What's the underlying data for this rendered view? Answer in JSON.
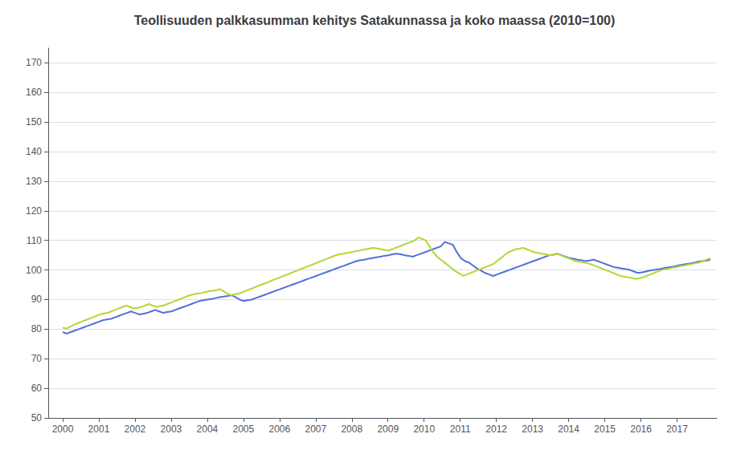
{
  "chart_data": {
    "type": "line",
    "title": "Teollisuuden palkkasumman kehitys Satakunnassa ja koko maassa (2010=100)",
    "xlim": [
      1999.6,
      2018.1
    ],
    "xticks": [
      2000,
      2001,
      2002,
      2003,
      2004,
      2005,
      2006,
      2007,
      2008,
      2009,
      2010,
      2011,
      2012,
      2013,
      2014,
      2015,
      2016,
      2017
    ],
    "ylim": [
      50,
      175
    ],
    "yticks": [
      50,
      60,
      70,
      80,
      90,
      100,
      110,
      120,
      130,
      140,
      150,
      160,
      170
    ],
    "grid": true,
    "series": [
      {
        "x": [
          2000,
          2000.1113,
          2000.2226,
          2000.3339,
          2000.4452,
          2000.5565,
          2000.6678,
          2000.7791,
          2000.8904,
          2001.0017,
          2001.113,
          2001.2243,
          2001.3357,
          2001.447,
          2001.5583,
          2001.6696,
          2001.7809,
          2001.8922,
          2002.0035,
          2002.1148,
          2002.2261,
          2002.3374,
          2002.4487,
          2002.56,
          2002.6713,
          2002.7826,
          2002.8939,
          2003.0052,
          2003.1165,
          2003.2278,
          2003.3391,
          2003.4504,
          2003.5617,
          2003.673,
          2003.7843,
          2003.8957,
          2004.007,
          2004.1183,
          2004.2296,
          2004.3409,
          2004.4522,
          2004.5635,
          2004.6748,
          2004.7861,
          2004.8974,
          2005.0087,
          2005.12,
          2005.2313,
          2005.3426,
          2005.4539,
          2005.5652,
          2005.6765,
          2005.7878,
          2005.8991,
          2006.0104,
          2006.1217,
          2006.233,
          2006.3443,
          2006.4557,
          2006.567,
          2006.6783,
          2006.7896,
          2006.9009,
          2007.0122,
          2007.1235,
          2007.2348,
          2007.3461,
          2007.4574,
          2007.5687,
          2007.68,
          2007.7913,
          2007.9026,
          2008.0139,
          2008.1252,
          2008.2365,
          2008.3478,
          2008.4591,
          2008.5704,
          2008.6817,
          2008.793,
          2008.9043,
          2009.0157,
          2009.127,
          2009.2383,
          2009.3496,
          2009.4609,
          2009.5722,
          2009.6835,
          2009.7948,
          2009.9061,
          2010.0174,
          2010.1287,
          2010.24,
          2010.3513,
          2010.4626,
          2010.5739,
          2010.6852,
          2010.7965,
          2010.9078,
          2011.0191,
          2011.1304,
          2011.2417,
          2011.353,
          2011.4643,
          2011.5757,
          2011.687,
          2011.7983,
          2011.9096,
          2012.0209,
          2012.1322,
          2012.2435,
          2012.3548,
          2012.4661,
          2012.5774,
          2012.6887,
          2012.8,
          2012.9113,
          2013.0226,
          2013.1339,
          2013.2452,
          2013.3565,
          2013.4678,
          2013.5791,
          2013.6904,
          2013.8017,
          2013.913,
          2014.0243,
          2014.1357,
          2014.247,
          2014.3583,
          2014.4696,
          2014.5809,
          2014.6922,
          2014.8035,
          2014.9148,
          2015.0261,
          2015.1374,
          2015.2487,
          2015.36,
          2015.4713,
          2015.5826,
          2015.6939,
          2015.8052,
          2015.9165,
          2016.0278,
          2016.1391,
          2016.2504,
          2016.3617,
          2016.473,
          2016.5843,
          2016.6957,
          2016.807,
          2016.9183,
          2017.0296,
          2017.1409,
          2017.2522,
          2017.3635,
          2017.4748,
          2017.5861,
          2017.6974,
          2017.8087,
          2017.92
        ],
        "values": [
          79.0,
          78.5,
          79.0,
          79.5,
          80.0,
          80.5,
          81.0,
          81.5,
          82.0,
          82.5,
          83.0,
          83.3,
          83.5,
          84.0,
          84.5,
          85.0,
          85.5,
          86.0,
          85.5,
          85.0,
          85.2,
          85.5,
          86.0,
          86.5,
          86.0,
          85.5,
          85.8,
          86.0,
          86.5,
          87.0,
          87.5,
          88.0,
          88.5,
          89.0,
          89.5,
          89.8,
          90.0,
          90.2,
          90.5,
          90.8,
          91.0,
          91.2,
          91.5,
          90.8,
          90.0,
          89.5,
          89.8,
          90.0,
          90.5,
          91.0,
          91.5,
          92.0,
          92.5,
          93.0,
          93.5,
          94.0,
          94.5,
          95.0,
          95.5,
          96.0,
          96.5,
          97.0,
          97.5,
          98.0,
          98.5,
          99.0,
          99.5,
          100.0,
          100.5,
          101.0,
          101.5,
          102.0,
          102.5,
          103.0,
          103.3,
          103.5,
          103.8,
          104.0,
          104.3,
          104.5,
          104.8,
          105.0,
          105.3,
          105.5,
          105.3,
          105.0,
          104.8,
          104.5,
          105.0,
          105.5,
          106.0,
          106.5,
          107.0,
          107.5,
          108.0,
          109.5,
          109.0,
          108.5,
          106.0,
          104.0,
          103.0,
          102.5,
          101.5,
          100.5,
          99.8,
          99.0,
          98.5,
          98.0,
          98.5,
          99.0,
          99.5,
          100.0,
          100.5,
          101.0,
          101.5,
          102.0,
          102.5,
          103.0,
          103.5,
          104.0,
          104.5,
          105.0,
          105.2,
          105.5,
          105.0,
          104.5,
          104.0,
          103.8,
          103.5,
          103.3,
          103.0,
          103.2,
          103.5,
          103.0,
          102.5,
          102.0,
          101.5,
          101.0,
          100.8,
          100.5,
          100.3,
          100.0,
          99.5,
          99.0,
          99.2,
          99.5,
          99.8,
          100.0,
          100.2,
          100.5,
          100.8,
          101.0,
          101.2,
          101.5,
          101.8,
          102.0,
          102.2,
          102.5,
          102.8,
          103.0,
          103.2,
          103.5
        ]
      },
      {
        "x": [
          2000,
          2000.1036,
          2000.2072,
          2000.3108,
          2000.4143,
          2000.5179,
          2000.6215,
          2000.7251,
          2000.8287,
          2000.9323,
          2001.0358,
          2001.1394,
          2001.243,
          2001.3466,
          2001.4502,
          2001.5538,
          2001.6573,
          2001.7609,
          2001.8645,
          2001.9681,
          2002.0717,
          2002.1753,
          2002.2788,
          2002.3824,
          2002.486,
          2002.5896,
          2002.6932,
          2002.7968,
          2002.9003,
          2003.0039,
          2003.1075,
          2003.2111,
          2003.3147,
          2003.4183,
          2003.5218,
          2003.6254,
          2003.729,
          2003.8326,
          2003.9362,
          2004.0398,
          2004.1434,
          2004.2469,
          2004.3505,
          2004.4541,
          2004.5577,
          2004.6613,
          2004.7649,
          2004.8684,
          2004.972,
          2005.0756,
          2005.1792,
          2005.2828,
          2005.3864,
          2005.4899,
          2005.5935,
          2005.6971,
          2005.8007,
          2005.9043,
          2006.0079,
          2006.1114,
          2006.215,
          2006.3186,
          2006.4222,
          2006.5258,
          2006.6294,
          2006.7329,
          2006.8365,
          2006.9401,
          2007.0437,
          2007.1473,
          2007.2509,
          2007.3545,
          2007.458,
          2007.5616,
          2007.6652,
          2007.7688,
          2007.8724,
          2007.976,
          2008.0795,
          2008.1831,
          2008.2867,
          2008.3903,
          2008.4939,
          2008.5975,
          2008.701,
          2008.8046,
          2008.9082,
          2009.0118,
          2009.1154,
          2009.219,
          2009.3225,
          2009.4261,
          2009.5297,
          2009.6333,
          2009.7369,
          2009.8405,
          2009.944,
          2010.0476,
          2010.1512,
          2010.2548,
          2010.3584,
          2010.462,
          2010.5655,
          2010.6691,
          2010.7727,
          2010.8763,
          2010.9799,
          2011.0835,
          2011.1871,
          2011.2906,
          2011.3942,
          2011.4978,
          2011.6014,
          2011.705,
          2011.8086,
          2011.9121,
          2012.0157,
          2012.1193,
          2012.2229,
          2012.3265,
          2012.4301,
          2012.5336,
          2012.6372,
          2012.7408,
          2012.8444,
          2012.948,
          2013.0516,
          2013.1551,
          2013.2587,
          2013.3623,
          2013.4659,
          2013.5695,
          2013.6731,
          2013.7766,
          2013.8802,
          2013.9838,
          2014.0874,
          2014.191,
          2014.2946,
          2014.3982,
          2014.5017,
          2014.6053,
          2014.7089,
          2014.8125,
          2014.9161,
          2015.0197,
          2015.1232,
          2015.2268,
          2015.3304,
          2015.434,
          2015.5376,
          2015.6412,
          2015.7447,
          2015.8483,
          2015.9519,
          2016.0555,
          2016.1591,
          2016.2627,
          2016.3662,
          2016.4698,
          2016.5734,
          2016.677,
          2016.7806,
          2016.8842,
          2016.9877,
          2017.0913,
          2017.1949,
          2017.2985,
          2017.4021,
          2017.5057,
          2017.6092,
          2017.7128,
          2017.8164,
          2017.92
        ],
        "values": [
          80.5,
          80.2,
          80.8,
          81.5,
          82.0,
          82.5,
          83.0,
          83.5,
          84.0,
          84.5,
          85.0,
          85.3,
          85.5,
          86.0,
          86.5,
          87.0,
          87.5,
          88.0,
          87.5,
          87.0,
          87.2,
          87.5,
          88.0,
          88.5,
          88.0,
          87.5,
          87.8,
          88.0,
          88.5,
          89.0,
          89.5,
          90.0,
          90.5,
          91.0,
          91.5,
          91.8,
          92.0,
          92.2,
          92.5,
          92.8,
          93.0,
          93.2,
          93.5,
          92.8,
          92.0,
          91.5,
          91.8,
          92.0,
          92.5,
          93.0,
          93.5,
          94.0,
          94.5,
          95.0,
          95.5,
          96.0,
          96.5,
          97.0,
          97.5,
          98.0,
          98.5,
          99.0,
          99.5,
          100.0,
          100.5,
          101.0,
          101.5,
          102.0,
          102.5,
          103.0,
          103.5,
          104.0,
          104.5,
          105.0,
          105.3,
          105.5,
          105.8,
          106.0,
          106.3,
          106.5,
          106.8,
          107.0,
          107.3,
          107.5,
          107.3,
          107.0,
          106.8,
          106.5,
          107.0,
          107.5,
          108.0,
          108.5,
          109.0,
          109.5,
          110.0,
          111.0,
          110.5,
          110.0,
          108.0,
          106.0,
          104.5,
          103.5,
          102.5,
          101.5,
          100.5,
          99.5,
          98.8,
          98.0,
          98.5,
          99.0,
          99.5,
          100.0,
          100.5,
          101.0,
          101.5,
          102.0,
          103.0,
          104.0,
          105.0,
          106.0,
          106.5,
          107.0,
          107.2,
          107.5,
          107.0,
          106.5,
          106.0,
          105.8,
          105.5,
          105.3,
          105.0,
          105.2,
          105.5,
          105.0,
          104.5,
          104.0,
          103.5,
          103.0,
          102.8,
          102.5,
          102.3,
          102.0,
          101.5,
          101.0,
          100.5,
          100.0,
          99.5,
          99.0,
          98.5,
          98.0,
          97.8,
          97.5,
          97.3,
          97.0,
          97.2,
          97.5,
          98.0,
          98.5,
          99.0,
          99.5,
          100.0,
          100.3,
          100.5,
          100.8,
          101.0,
          101.3,
          101.5,
          101.8,
          102.0,
          102.3,
          102.5,
          103.0,
          103.5,
          104.0
        ]
      }
    ]
  }
}
